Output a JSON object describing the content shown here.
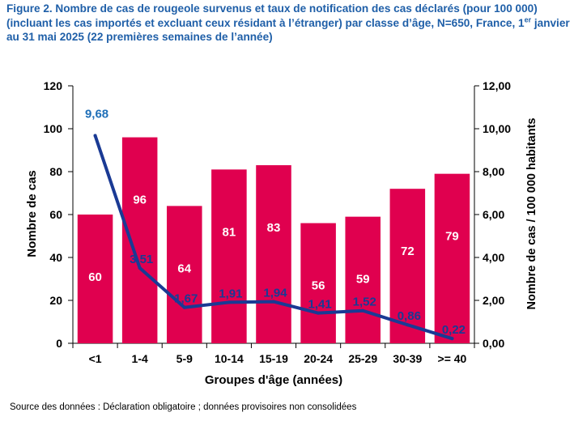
{
  "title": {
    "part1": "Figure 2. Nombre de cas de rougeole survenus et taux de notification des cas déclarés (pour 100 000) (incluant les cas importés et excluant ceux résidant à l’étranger) par classe d’âge, N=650, France, 1",
    "sup": "er",
    "part2": " janvier au 31 mai 2025 (22 premières semaines de l’année)"
  },
  "source": "Source des données : Déclaration obligatoire ; données provisoires non consolidées",
  "colors": {
    "bar": "#e0004f",
    "line": "#1a3a94",
    "title": "#1f5fa8"
  },
  "chart_data": {
    "type": "bar",
    "categories": [
      "<1",
      "1-4",
      "5-9",
      "10-14",
      "15-19",
      "20-24",
      "25-29",
      "30-39",
      ">= 40"
    ],
    "series": [
      {
        "name": "Nombre de cas",
        "type": "bar",
        "axis": "left",
        "values": [
          60,
          96,
          64,
          81,
          83,
          56,
          59,
          72,
          79
        ],
        "labels": [
          "60",
          "96",
          "64",
          "81",
          "83",
          "56",
          "59",
          "72",
          "79"
        ]
      },
      {
        "name": "Nombre de cas / 100 000 habitants",
        "type": "line",
        "axis": "right",
        "values": [
          9.68,
          3.51,
          1.67,
          1.91,
          1.94,
          1.41,
          1.52,
          0.86,
          0.22
        ],
        "labels": [
          "9,68",
          "3,51",
          "1,67",
          "1,91",
          "1,94",
          "1,41",
          "1,52",
          "0,86",
          "0,22"
        ]
      }
    ],
    "xlabel": "Groupes d'âge (années)",
    "ylabel": "Nombre de cas",
    "y2label": "Nombre de cas / 100 000 habitants",
    "ylim": [
      0,
      120
    ],
    "y2lim": [
      0,
      12
    ],
    "yticks": [
      "0",
      "20",
      "40",
      "60",
      "80",
      "100",
      "120"
    ],
    "y2ticks": [
      "0,00",
      "2,00",
      "4,00",
      "6,00",
      "8,00",
      "10,00",
      "12,00"
    ],
    "grid": false,
    "legend": "none"
  }
}
